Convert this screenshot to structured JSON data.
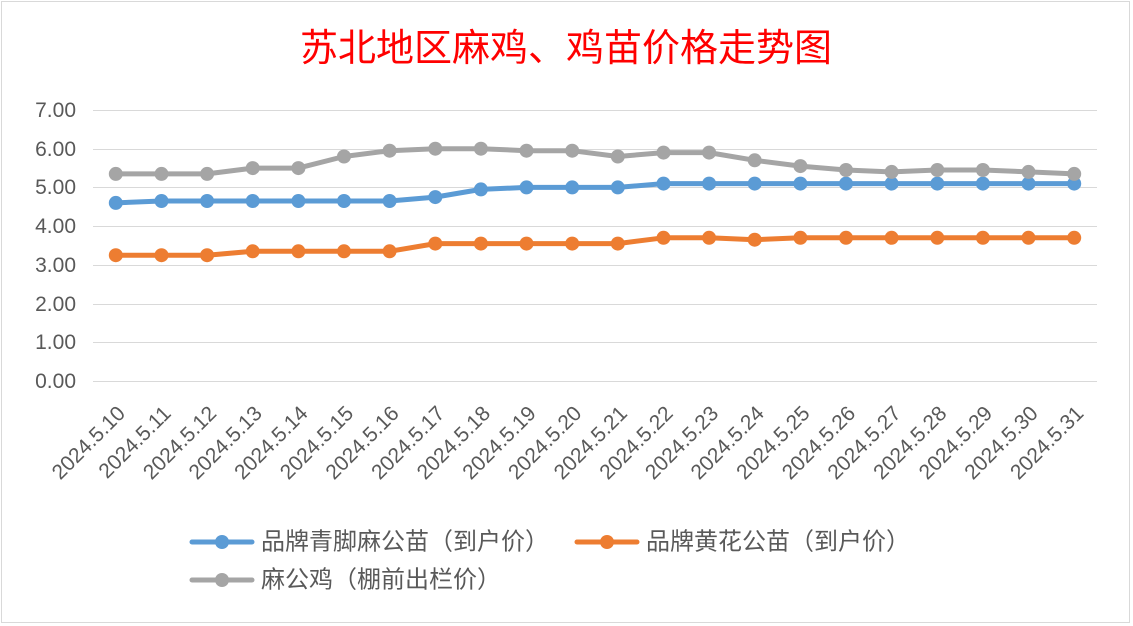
{
  "chart_data": {
    "type": "line",
    "title": "苏北地区麻鸡、鸡苗价格走势图",
    "title_color": "#FF0000",
    "categories": [
      "2024.5.10",
      "2024.5.11",
      "2024.5.12",
      "2024.5.13",
      "2024.5.14",
      "2024.5.15",
      "2024.5.16",
      "2024.5.17",
      "2024.5.18",
      "2024.5.19",
      "2024.5.20",
      "2024.5.21",
      "2024.5.22",
      "2024.5.23",
      "2024.5.24",
      "2024.5.25",
      "2024.5.26",
      "2024.5.27",
      "2024.5.28",
      "2024.5.29",
      "2024.5.30",
      "2024.5.31"
    ],
    "ylim": [
      0,
      7
    ],
    "yticks": [
      "0.00",
      "1.00",
      "2.00",
      "3.00",
      "4.00",
      "5.00",
      "6.00",
      "7.00"
    ],
    "grid": true,
    "markers": true,
    "legend_position": "bottom",
    "series": [
      {
        "name": "品牌青脚麻公苗（到户价）",
        "color": "#5B9BD5",
        "values": [
          4.6,
          4.65,
          4.65,
          4.65,
          4.65,
          4.65,
          4.65,
          4.75,
          4.95,
          5.0,
          5.0,
          5.0,
          5.1,
          5.1,
          5.1,
          5.1,
          5.1,
          5.1,
          5.1,
          5.1,
          5.1,
          5.1
        ]
      },
      {
        "name": "品牌黄花公苗（到户价）",
        "color": "#ED7D31",
        "values": [
          3.25,
          3.25,
          3.25,
          3.35,
          3.35,
          3.35,
          3.35,
          3.55,
          3.55,
          3.55,
          3.55,
          3.55,
          3.7,
          3.7,
          3.65,
          3.7,
          3.7,
          3.7,
          3.7,
          3.7,
          3.7,
          3.7
        ]
      },
      {
        "name": "麻公鸡（棚前出栏价）",
        "color": "#A5A5A5",
        "values": [
          5.35,
          5.35,
          5.35,
          5.5,
          5.5,
          5.8,
          5.95,
          6.0,
          6.0,
          5.95,
          5.95,
          5.8,
          5.9,
          5.9,
          5.7,
          5.55,
          5.45,
          5.4,
          5.45,
          5.45,
          5.4,
          5.35
        ]
      }
    ]
  }
}
